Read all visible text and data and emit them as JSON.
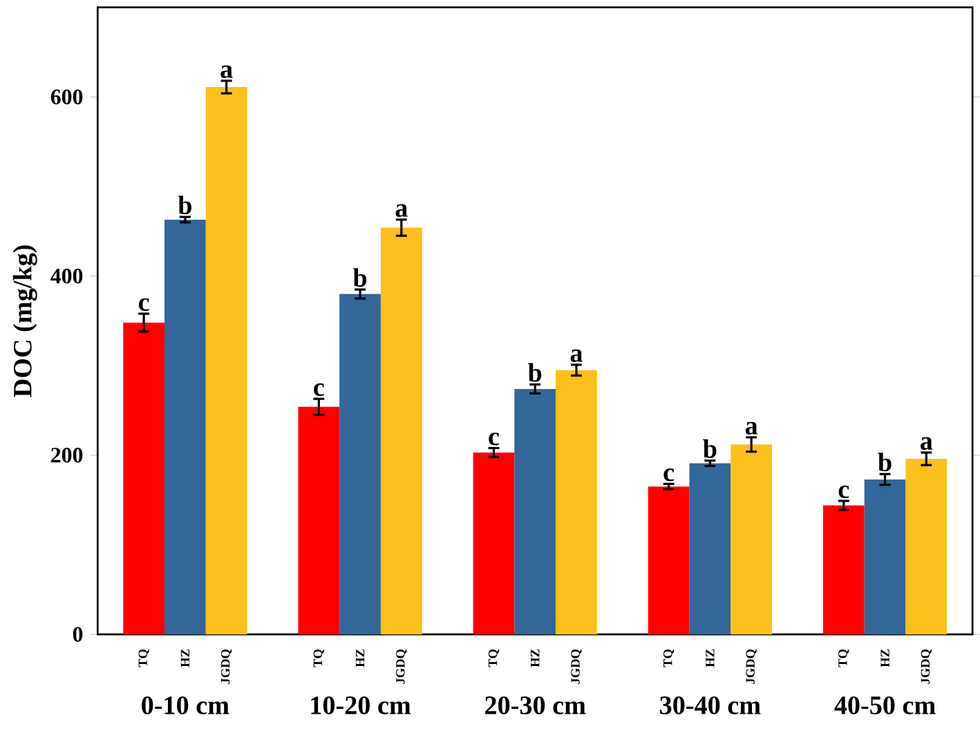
{
  "chart_data": {
    "type": "bar",
    "ylabel": "DOC (mg/kg)",
    "categories": [
      "0-10 cm",
      "10-20 cm",
      "20-30 cm",
      "30-40 cm",
      "40-50 cm"
    ],
    "series": [
      {
        "name": "TQ",
        "color": "#ff0000",
        "values": [
          348,
          254,
          203,
          165,
          144
        ],
        "errors": [
          10,
          9,
          5,
          3,
          5
        ]
      },
      {
        "name": "HZ",
        "color": "#336699",
        "values": [
          463,
          380,
          274,
          191,
          173
        ],
        "errors": [
          3,
          5,
          5,
          3,
          6
        ]
      },
      {
        "name": "JGDQ",
        "color": "#fcc01c",
        "values": [
          611,
          454,
          295,
          212,
          196
        ],
        "errors": [
          7,
          9,
          6,
          8,
          7
        ]
      }
    ],
    "ylim": [
      0,
      700
    ],
    "yticks": [
      0,
      200,
      400,
      600
    ],
    "legend": false,
    "annotations": [
      "c",
      "b",
      "a",
      "c",
      "b",
      "a",
      "c",
      "b",
      "a",
      "c",
      "b",
      "a",
      "c",
      "b",
      "a"
    ]
  }
}
